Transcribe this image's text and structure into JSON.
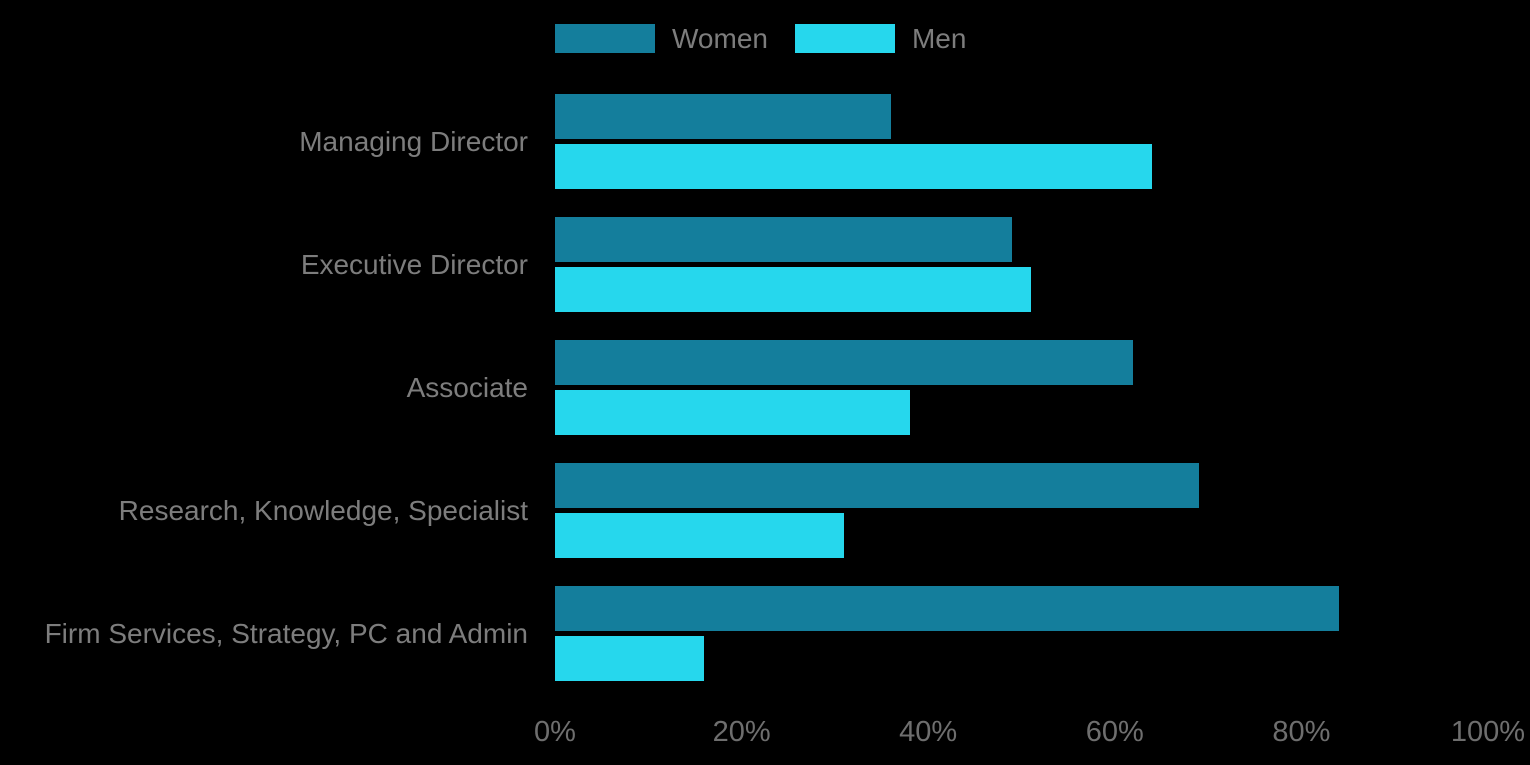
{
  "chart_data": {
    "type": "bar",
    "orientation": "horizontal",
    "categories": [
      "Managing Director",
      "Executive Director",
      "Associate",
      "Research, Knowledge, Specialist",
      "Firm Services, Strategy, PC and Admin"
    ],
    "series": [
      {
        "name": "Women",
        "color": "#147e9c",
        "values": [
          36,
          49,
          62,
          69,
          84
        ]
      },
      {
        "name": "Men",
        "color": "#26d7ed",
        "values": [
          64,
          51,
          38,
          31,
          16
        ]
      }
    ],
    "x_ticks": [
      "0%",
      "20%",
      "40%",
      "60%",
      "80%",
      "100%"
    ],
    "xlim": [
      0,
      100
    ],
    "value_unit": "percent",
    "legend_position": "top",
    "grid": false
  },
  "colors": {
    "background": "#000000",
    "category_text": "#7d7d7d",
    "axis_text": "#6e6e6e",
    "women_bar": "#147e9c",
    "men_bar": "#26d7ed"
  }
}
